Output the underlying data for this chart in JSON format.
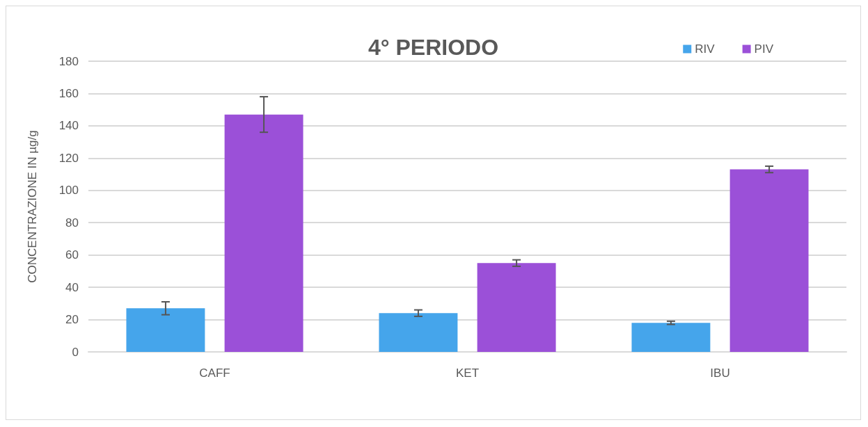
{
  "chart_data": {
    "type": "bar",
    "title": "4° PERIODO",
    "ylabel": "CONCENTRAZIONE IN µg/g",
    "categories": [
      "CAFF",
      "KET",
      "IBU"
    ],
    "series": [
      {
        "name": "RIV",
        "color": "#45a5eb",
        "values": [
          27,
          24,
          18
        ],
        "errors": [
          4,
          2,
          1
        ]
      },
      {
        "name": "PIV",
        "color": "#9b50d8",
        "values": [
          147,
          55,
          113
        ],
        "errors": [
          11,
          2,
          2
        ]
      }
    ],
    "ylim": [
      0,
      180
    ],
    "yticks": [
      0,
      20,
      40,
      60,
      80,
      100,
      120,
      140,
      160,
      180
    ],
    "grid": "y",
    "legend": "top right"
  }
}
